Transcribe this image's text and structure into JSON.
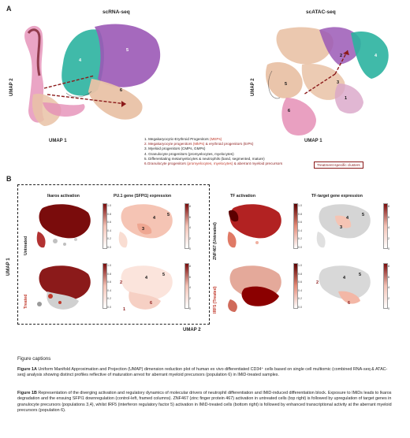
{
  "panel_a": {
    "letter": "A",
    "title_left": "scRNA-seq",
    "title_right": "scATAC-seq",
    "axis_x_left": "UMAP 1",
    "axis_y_left": "UMAP 2",
    "axis_x_right": "UMAP 1",
    "axis_y_right": "UMAP 2",
    "cluster_labels_left": [
      "4",
      "5",
      "6"
    ],
    "cluster_labels_right": [
      "1",
      "2",
      "3",
      "4",
      "5",
      "6"
    ],
    "legend": [
      {
        "text": "1. Megakaryocytic-Erythroid Progenitors ",
        "accent": "(MEPs)",
        "tail": ""
      },
      {
        "text": "2. Megakaryocyte progenitors ",
        "accent": "(MkPs)",
        "tail": " & erythroid progenitors (ErPs)"
      },
      {
        "text": "3. Myeloid progenitors (CMPs, GMPs)",
        "accent": "",
        "tail": ""
      },
      {
        "text": "4. Granulocyte progenitors (promyelocytes, myelocytes)",
        "accent": "",
        "tail": ""
      },
      {
        "text": "5. Differentiating metamyelocytes & neutrophils (band, segmented, mature)",
        "accent": "",
        "tail": ""
      },
      {
        "text": "6.Granulocyte progenitors ",
        "accent": "(promyelocytes, myelocytes)",
        "tail": " & aberrant myeloid precursors"
      }
    ],
    "treatment_box": "Treatment-specific clusters",
    "colors": {
      "purple": "#9b59b6",
      "green": "#2bb3a0",
      "pink": "#e58fb6",
      "peach": "#e9c2a6",
      "maroon": "#8b1a1a",
      "grey": "#c8c8c8"
    }
  },
  "panel_b": {
    "letter": "B",
    "col_titles": [
      "Ikaros activation",
      "PU.1 gene (SFPI1) expression",
      "TF activation",
      "TF-target gene expression"
    ],
    "row_labels_left": [
      "Untreated",
      "Treated"
    ],
    "row_labels_right": [
      "ZNF467 (Untreated)",
      "IRF5 (Treated)"
    ],
    "axis_x": "UMAP 2",
    "axis_y": "UMAP 1",
    "colorbar_ticks_01": [
      "1.0",
      "0.8",
      "0.6",
      "0.4",
      "0.2",
      "0.0"
    ],
    "colorbar_ticks_8": [
      "8",
      "6",
      "4",
      "2",
      "0"
    ],
    "cluster_nums_untreated": [
      "3",
      "4",
      "5"
    ],
    "cluster_nums_treated": [
      "2",
      "4",
      "5",
      "1",
      "6"
    ]
  },
  "captions": {
    "heading": "Figure captions",
    "fig1a_label": "Figure 1A",
    "fig1a_text": " Uniform Manifold Approximation and Projection (UMAP) dimension reduction plot of human ex vivo differentiated CD34⁺ cells based on single cell multiomic (combined RNA-seq & ATAC-seq) analysis showing distinct profiles reflective of maturation arrest for aberrant myeloid precursors (population 6) in IMiD-treated samples.",
    "fig1b_label": "Figure 1B",
    "fig1b_text": " Representation of the diverging activation and regulatory dynamics of molecular drivers of neutrophil differentiation and IMiD-induced differentiation block. Exposure to IMiDs leads to Ikaros degradation and the ensuing SFPI1 downregulation (control-left, framed columns). ZNF467 (zinc finger protein 467) activation in untreated cells (top right) is followed by upregulation of target genes in granulocyte precursors (populations 3,4), whilst IRF5 (interferon regulatory factor 5) activation in IMiD-treated cells (bottom right) is followed by enhanced transcriptional activity at the aberrant myeloid precursors (population 6)."
  }
}
